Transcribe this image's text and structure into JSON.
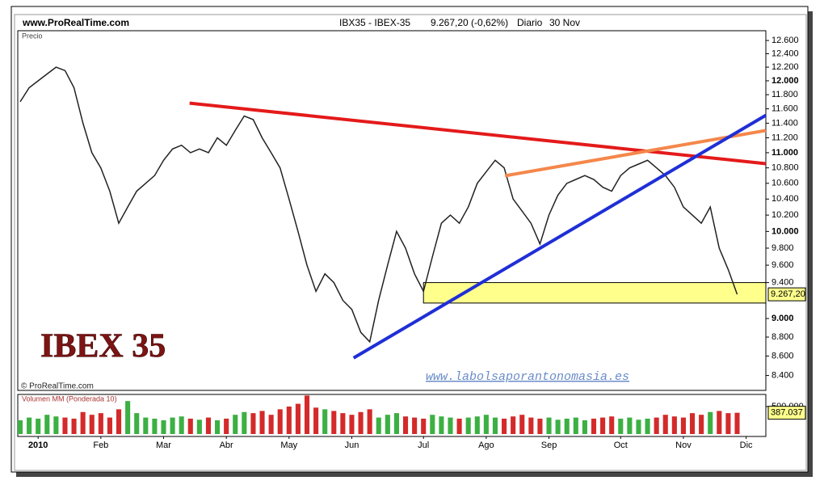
{
  "header": {
    "site": "www.ProRealTime.com",
    "instrument": "IBX35 - IBEX-35",
    "quote": "9.267,20 (-0,62%)",
    "period": "Diario",
    "date": "30 Nov"
  },
  "chart_data": [
    {
      "type": "line",
      "label": "Precio",
      "credit": "© ProRealTime.com",
      "title": "IBEX 35",
      "watermark": "www.labolsaporantonomasia.es",
      "categories": [
        null,
        null,
        "2010",
        null,
        null,
        null,
        null,
        null,
        null,
        "Feb",
        null,
        null,
        null,
        null,
        null,
        null,
        "Mar",
        null,
        null,
        null,
        null,
        null,
        null,
        "Abr",
        null,
        null,
        null,
        null,
        null,
        null,
        "May",
        null,
        null,
        null,
        null,
        null,
        null,
        "Jun",
        null,
        null,
        null,
        null,
        null,
        null,
        null,
        "Jul",
        null,
        null,
        null,
        null,
        null,
        null,
        "Ago",
        null,
        null,
        null,
        null,
        null,
        null,
        "Sep",
        null,
        null,
        null,
        null,
        null,
        null,
        null,
        "Oct",
        null,
        null,
        null,
        null,
        null,
        null,
        "Nov",
        null,
        null,
        null,
        null,
        null,
        null,
        "Dic"
      ],
      "values": [
        11700,
        11900,
        12000,
        12100,
        12200,
        12150,
        11900,
        11400,
        11000,
        10800,
        10500,
        10100,
        10300,
        10500,
        10600,
        10700,
        10900,
        11050,
        11100,
        11000,
        11050,
        11000,
        11200,
        11100,
        11300,
        11500,
        11450,
        11200,
        11000,
        10800,
        10400,
        10000,
        9600,
        9300,
        9500,
        9400,
        9200,
        9100,
        8850,
        8750,
        9200,
        9600,
        10000,
        9800,
        9500,
        9300,
        9700,
        10100,
        10200,
        10100,
        10300,
        10600,
        10750,
        10900,
        10800,
        10400,
        10250,
        10100,
        9850,
        10200,
        10450,
        10600,
        10650,
        10700,
        10650,
        10550,
        10500,
        10700,
        10800,
        10850,
        10900,
        10800,
        10700,
        10550,
        10300,
        10200,
        10100,
        10300,
        9800,
        9550,
        9267.2,
        null
      ],
      "color": "#222222",
      "last_label": "9.267,20",
      "log_scale": true,
      "xlim": [
        -0.27,
        83.2
      ],
      "ylim": [
        8250,
        12750
      ],
      "yticks": [
        {
          "value": 8400,
          "label": "8.400"
        },
        {
          "value": 8600,
          "label": "8.600"
        },
        {
          "value": 8800,
          "label": "8.800"
        },
        {
          "value": 9000,
          "label": "9.000"
        },
        {
          "value": 9400,
          "label": "9.400"
        },
        {
          "value": 9600,
          "label": "9.600"
        },
        {
          "value": 9800,
          "label": "9.800"
        },
        {
          "value": 10000,
          "label": "10.000"
        },
        {
          "value": 10200,
          "label": "10.200"
        },
        {
          "value": 10400,
          "label": "10.400"
        },
        {
          "value": 10600,
          "label": "10.600"
        },
        {
          "value": 10800,
          "label": "10.800"
        },
        {
          "value": 11000,
          "label": "11.000"
        },
        {
          "value": 11200,
          "label": "11.200"
        },
        {
          "value": 11400,
          "label": "11.400"
        },
        {
          "value": 11600,
          "label": "11.600"
        },
        {
          "value": 11800,
          "label": "11.800"
        },
        {
          "value": 12000,
          "label": "12.000"
        },
        {
          "value": 12200,
          "label": "12.200"
        },
        {
          "value": 12400,
          "label": "12.400"
        },
        {
          "value": 12600,
          "label": "12.600"
        }
      ],
      "trendlines": [
        {
          "color": "#e41a1a",
          "start": [
            18.9,
            11680
          ],
          "end": [
            83.2,
            10855
          ]
        },
        {
          "color": "#f4874b",
          "start": [
            54.1,
            10697
          ],
          "end": [
            83.2,
            11300
          ]
        },
        {
          "color": "#1f2fd6",
          "start": [
            37.2,
            8580
          ],
          "end": [
            83.2,
            11510
          ]
        }
      ],
      "zone": {
        "color": "#ffff8c",
        "x0": 45,
        "range": [
          9170,
          9400
        ]
      }
    },
    {
      "type": "bar",
      "label": "Volumen MM (Ponderada 10)",
      "values": [
        250000,
        300000,
        280000,
        350000,
        320000,
        300000,
        280000,
        400000,
        350000,
        380000,
        300000,
        450000,
        600000,
        380000,
        300000,
        280000,
        250000,
        300000,
        320000,
        280000,
        260000,
        300000,
        250000,
        280000,
        350000,
        400000,
        380000,
        420000,
        350000,
        450000,
        500000,
        550000,
        700000,
        480000,
        450000,
        420000,
        380000,
        350000,
        400000,
        450000,
        300000,
        350000,
        380000,
        320000,
        300000,
        280000,
        350000,
        320000,
        300000,
        280000,
        300000,
        320000,
        350000,
        300000,
        280000,
        320000,
        350000,
        300000,
        280000,
        300000,
        260000,
        280000,
        300000,
        250000,
        280000,
        300000,
        320000,
        280000,
        300000,
        260000,
        280000,
        300000,
        350000,
        320000,
        300000,
        380000,
        350000,
        400000,
        420000,
        380000,
        387037,
        null
      ],
      "up_color": "#3cb043",
      "down_color": "#d42a2a",
      "last_label": "387.037",
      "ylim": [
        0,
        720000
      ],
      "yticks": [
        {
          "value": 500000,
          "label": "500.000"
        }
      ]
    }
  ]
}
